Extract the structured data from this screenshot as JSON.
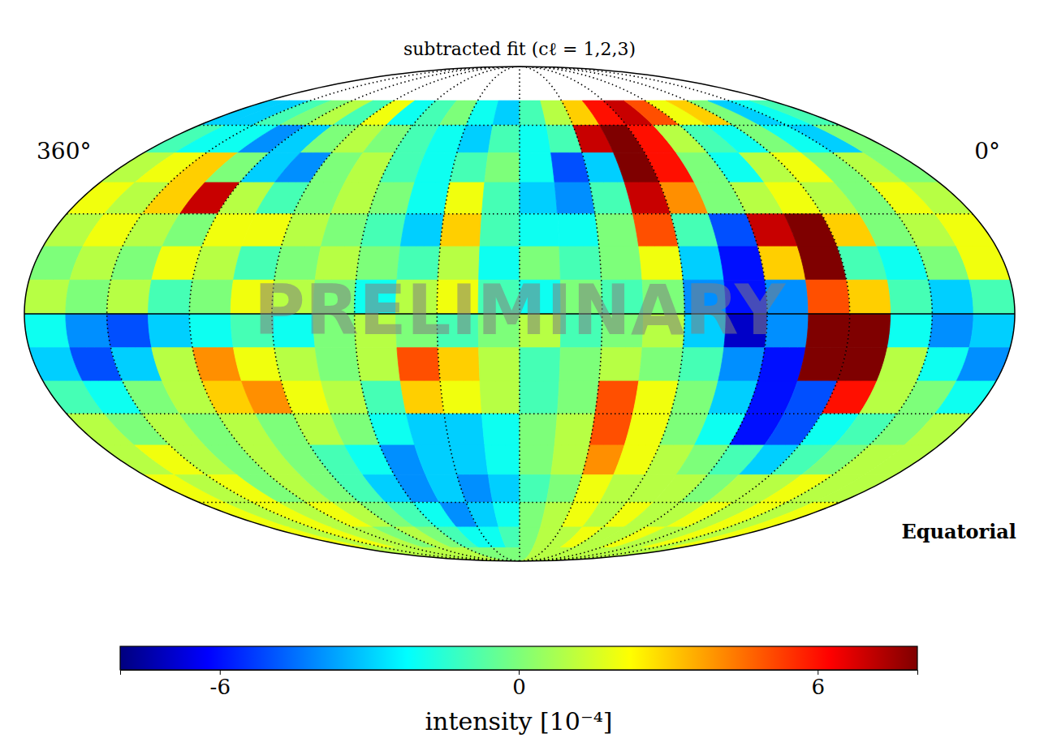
{
  "chart_data": {
    "type": "heatmap",
    "title": "subtracted fit (cℓ = 1,2,3)",
    "coordinate_label": "Equatorial",
    "watermark": "PRELIMINARY",
    "xlim": [
      360,
      0
    ],
    "ylim": [
      -90,
      90
    ],
    "xticks": [
      {
        "value": 360,
        "label": "360°"
      },
      {
        "value": 0,
        "label": "0°"
      }
    ],
    "tick_labels": "x",
    "grid": true,
    "ra_grid": [
      330,
      300,
      270,
      240,
      210,
      180,
      150,
      120,
      90,
      60,
      30
    ],
    "dec_grid": [
      -60,
      -30,
      0,
      30,
      60
    ],
    "ra_edges": [
      360,
      345,
      330,
      315,
      300,
      285,
      270,
      255,
      240,
      225,
      210,
      195,
      180,
      165,
      150,
      135,
      120,
      105,
      90,
      75,
      60,
      45,
      30,
      15,
      0
    ],
    "dec_edges": [
      90,
      80,
      70,
      60,
      50,
      40,
      30,
      20,
      10,
      0,
      -10,
      -20,
      -30,
      -40,
      -50,
      -60,
      -70,
      -80,
      -90
    ],
    "cells": [
      [
        null,
        null,
        null,
        null,
        null,
        null,
        null,
        null,
        null,
        null,
        null,
        null,
        null,
        null,
        null,
        null,
        null,
        null,
        null,
        null,
        null,
        null,
        null,
        null
      ],
      [
        null,
        null,
        null,
        null,
        null,
        null,
        null,
        null,
        null,
        null,
        null,
        null,
        null,
        null,
        null,
        null,
        null,
        null,
        null,
        null,
        null,
        null,
        null,
        null
      ],
      [
        -3,
        -3,
        -1,
        0,
        1,
        -1,
        2,
        -2,
        -1,
        0,
        -2,
        -3,
        -1,
        1,
        3,
        6,
        7,
        5,
        2,
        3,
        0,
        -3,
        -2,
        -1
      ],
      [
        -1,
        -2,
        -2,
        -4,
        -3,
        0,
        1,
        0,
        -1,
        -2,
        -3,
        -1,
        -2,
        -1,
        7,
        8,
        6,
        1,
        -1,
        -2,
        0,
        -2,
        -3,
        0
      ],
      [
        1,
        2,
        3,
        0,
        -3,
        -4,
        0,
        1,
        -1,
        -2,
        -1,
        0,
        -2,
        -5,
        -3,
        8,
        6,
        0,
        -2,
        1,
        2,
        0,
        1,
        0
      ],
      [
        2,
        1,
        3,
        7,
        1,
        -1,
        0,
        1,
        0,
        -2,
        2,
        -1,
        -3,
        -4,
        -1,
        7,
        4,
        0,
        1,
        2,
        1,
        0,
        2,
        1
      ],
      [
        1,
        2,
        1,
        0,
        2,
        2,
        1,
        0,
        -1,
        -3,
        3,
        -1,
        -2,
        -2,
        0,
        5,
        -1,
        -5,
        7,
        8,
        3,
        0,
        1,
        2
      ],
      [
        0,
        1,
        0,
        2,
        1,
        -1,
        0,
        1,
        0,
        -1,
        1,
        -2,
        0,
        -1,
        0,
        2,
        -3,
        -6,
        3,
        8,
        -1,
        -2,
        0,
        2
      ],
      [
        1,
        0,
        1,
        -1,
        0,
        2,
        1,
        0,
        -2,
        1,
        2,
        -1,
        -2,
        0,
        -1,
        0,
        -4,
        -6,
        -4,
        5,
        3,
        -1,
        -3,
        -1
      ],
      [
        -2,
        -4,
        -5,
        -3,
        -2,
        -1,
        -2,
        0,
        1,
        0,
        -1,
        0,
        1,
        -1,
        0,
        1,
        -3,
        -7,
        -4,
        8,
        8,
        -2,
        -4,
        -3
      ],
      [
        -3,
        -5,
        -3,
        1,
        4,
        2,
        1,
        0,
        1,
        5,
        3,
        1,
        -1,
        0,
        1,
        0,
        -1,
        -4,
        -6,
        8,
        8,
        1,
        -2,
        -4
      ],
      [
        -1,
        -2,
        0,
        1,
        3,
        4,
        2,
        1,
        -1,
        3,
        2,
        1,
        -1,
        0,
        5,
        2,
        0,
        -3,
        -6,
        -5,
        6,
        1,
        0,
        -2
      ],
      [
        1,
        0,
        1,
        0,
        1,
        0,
        1,
        0,
        -2,
        -3,
        -3,
        -2,
        0,
        1,
        5,
        2,
        0,
        -2,
        -6,
        -5,
        -2,
        -1,
        0,
        1
      ],
      [
        1,
        2,
        1,
        0,
        1,
        0,
        -1,
        -2,
        -4,
        -3,
        -3,
        -2,
        0,
        1,
        4,
        2,
        1,
        0,
        -1,
        -3,
        -1,
        0,
        1,
        1
      ],
      [
        2,
        1,
        2,
        0,
        1,
        0,
        -1,
        -3,
        -4,
        -3,
        -4,
        -3,
        -1,
        0,
        2,
        1,
        1,
        1,
        0,
        1,
        1,
        2,
        1,
        1
      ],
      [
        2,
        1,
        2,
        1,
        2,
        1,
        0,
        -1,
        -2,
        -4,
        -3,
        -2,
        0,
        1,
        2,
        1,
        2,
        1,
        1,
        2,
        1,
        2,
        1,
        2
      ],
      [
        2,
        1,
        2,
        1,
        1,
        0,
        1,
        0,
        -1,
        -2,
        -2,
        -1,
        0,
        1,
        1,
        2,
        1,
        1,
        2,
        1,
        1,
        2,
        1,
        2
      ],
      [
        1,
        1,
        1,
        1,
        1,
        1,
        1,
        1,
        0,
        0,
        0,
        0,
        0,
        1,
        1,
        1,
        1,
        1,
        1,
        1,
        1,
        1,
        1,
        1
      ]
    ],
    "colorbar": {
      "label": "intensity [10⁻⁴]",
      "range": [
        -8,
        8
      ],
      "ticks": [
        -6,
        0,
        6
      ]
    }
  }
}
